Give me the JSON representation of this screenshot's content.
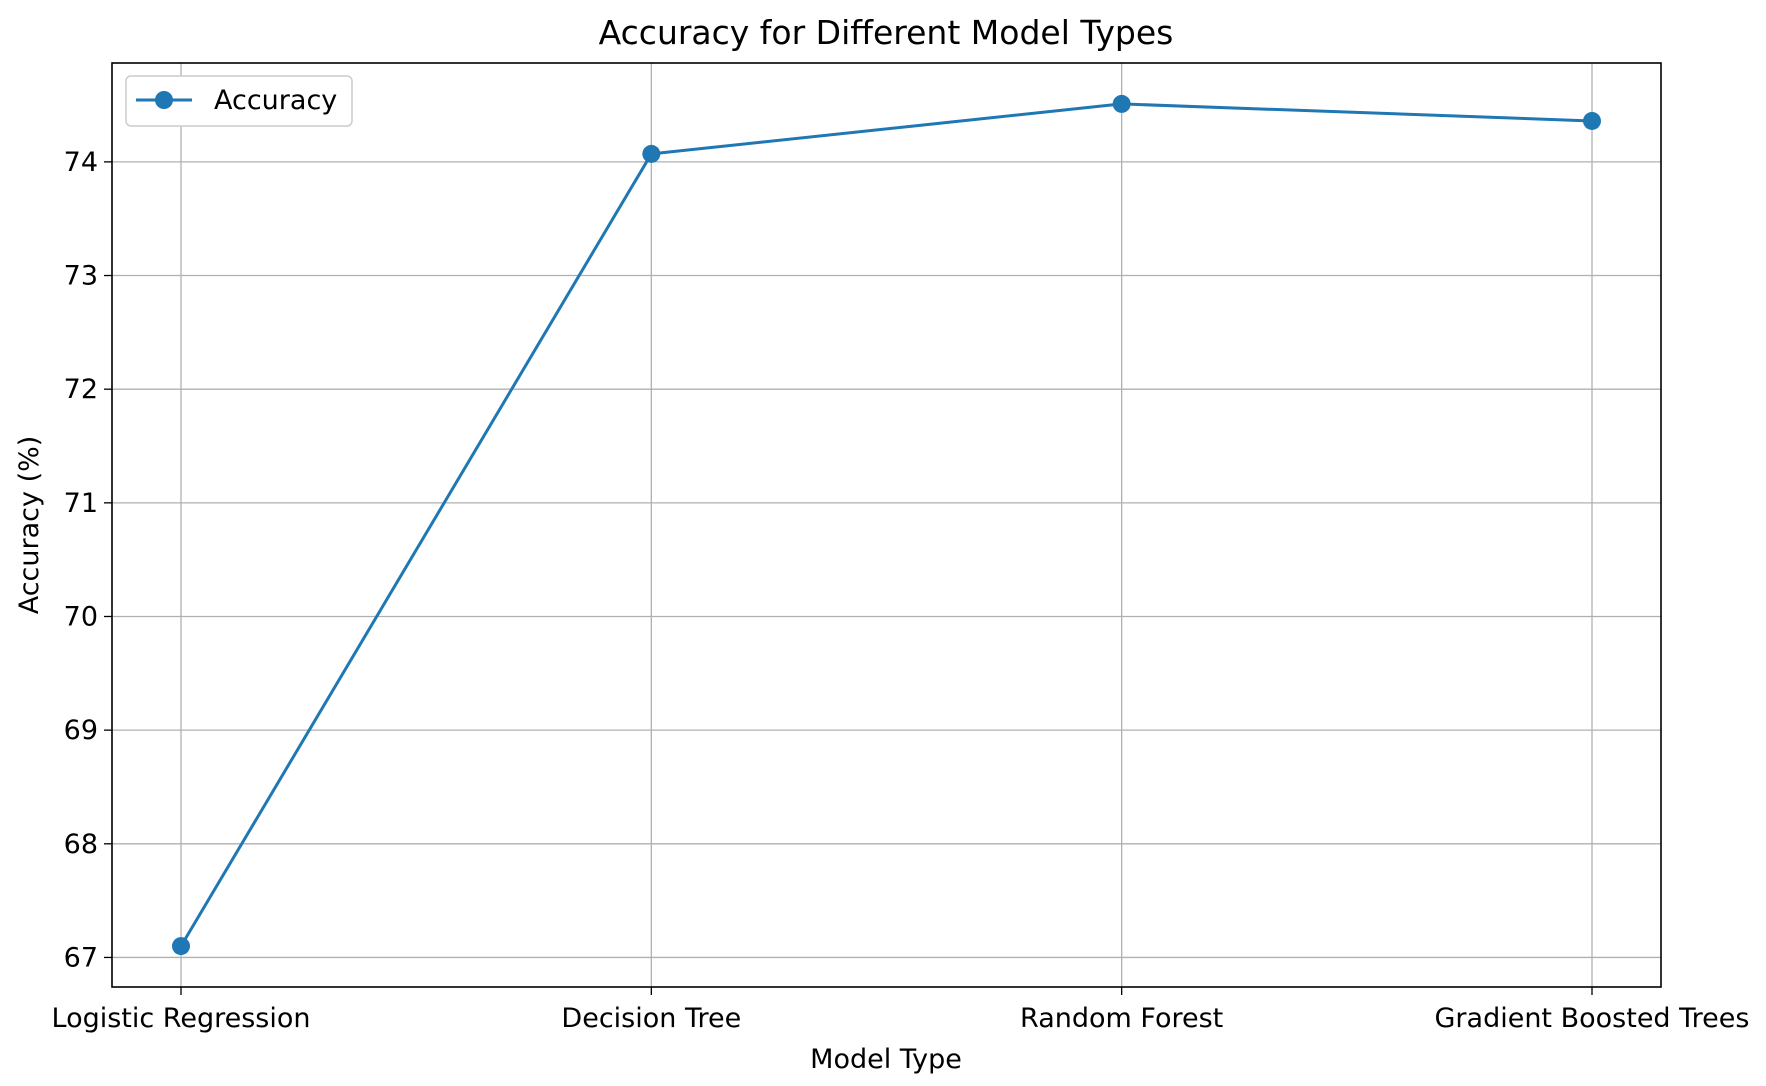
{
  "chart_data": {
    "type": "line",
    "title": "Accuracy for Different Model Types",
    "xlabel": "Model Type",
    "ylabel": "Accuracy (%)",
    "categories": [
      "Logistic Regression",
      "Decision Tree",
      "Random Forest",
      "Gradient Boosted Trees"
    ],
    "series": [
      {
        "name": "Accuracy",
        "values": [
          67.1,
          74.07,
          74.51,
          74.36
        ],
        "color": "#1f77b4",
        "marker": "circle"
      }
    ],
    "yticks": [
      67,
      68,
      69,
      70,
      71,
      72,
      73,
      74
    ],
    "ylim": [
      66.74,
      74.87
    ],
    "grid": true,
    "legend": "top-left"
  }
}
